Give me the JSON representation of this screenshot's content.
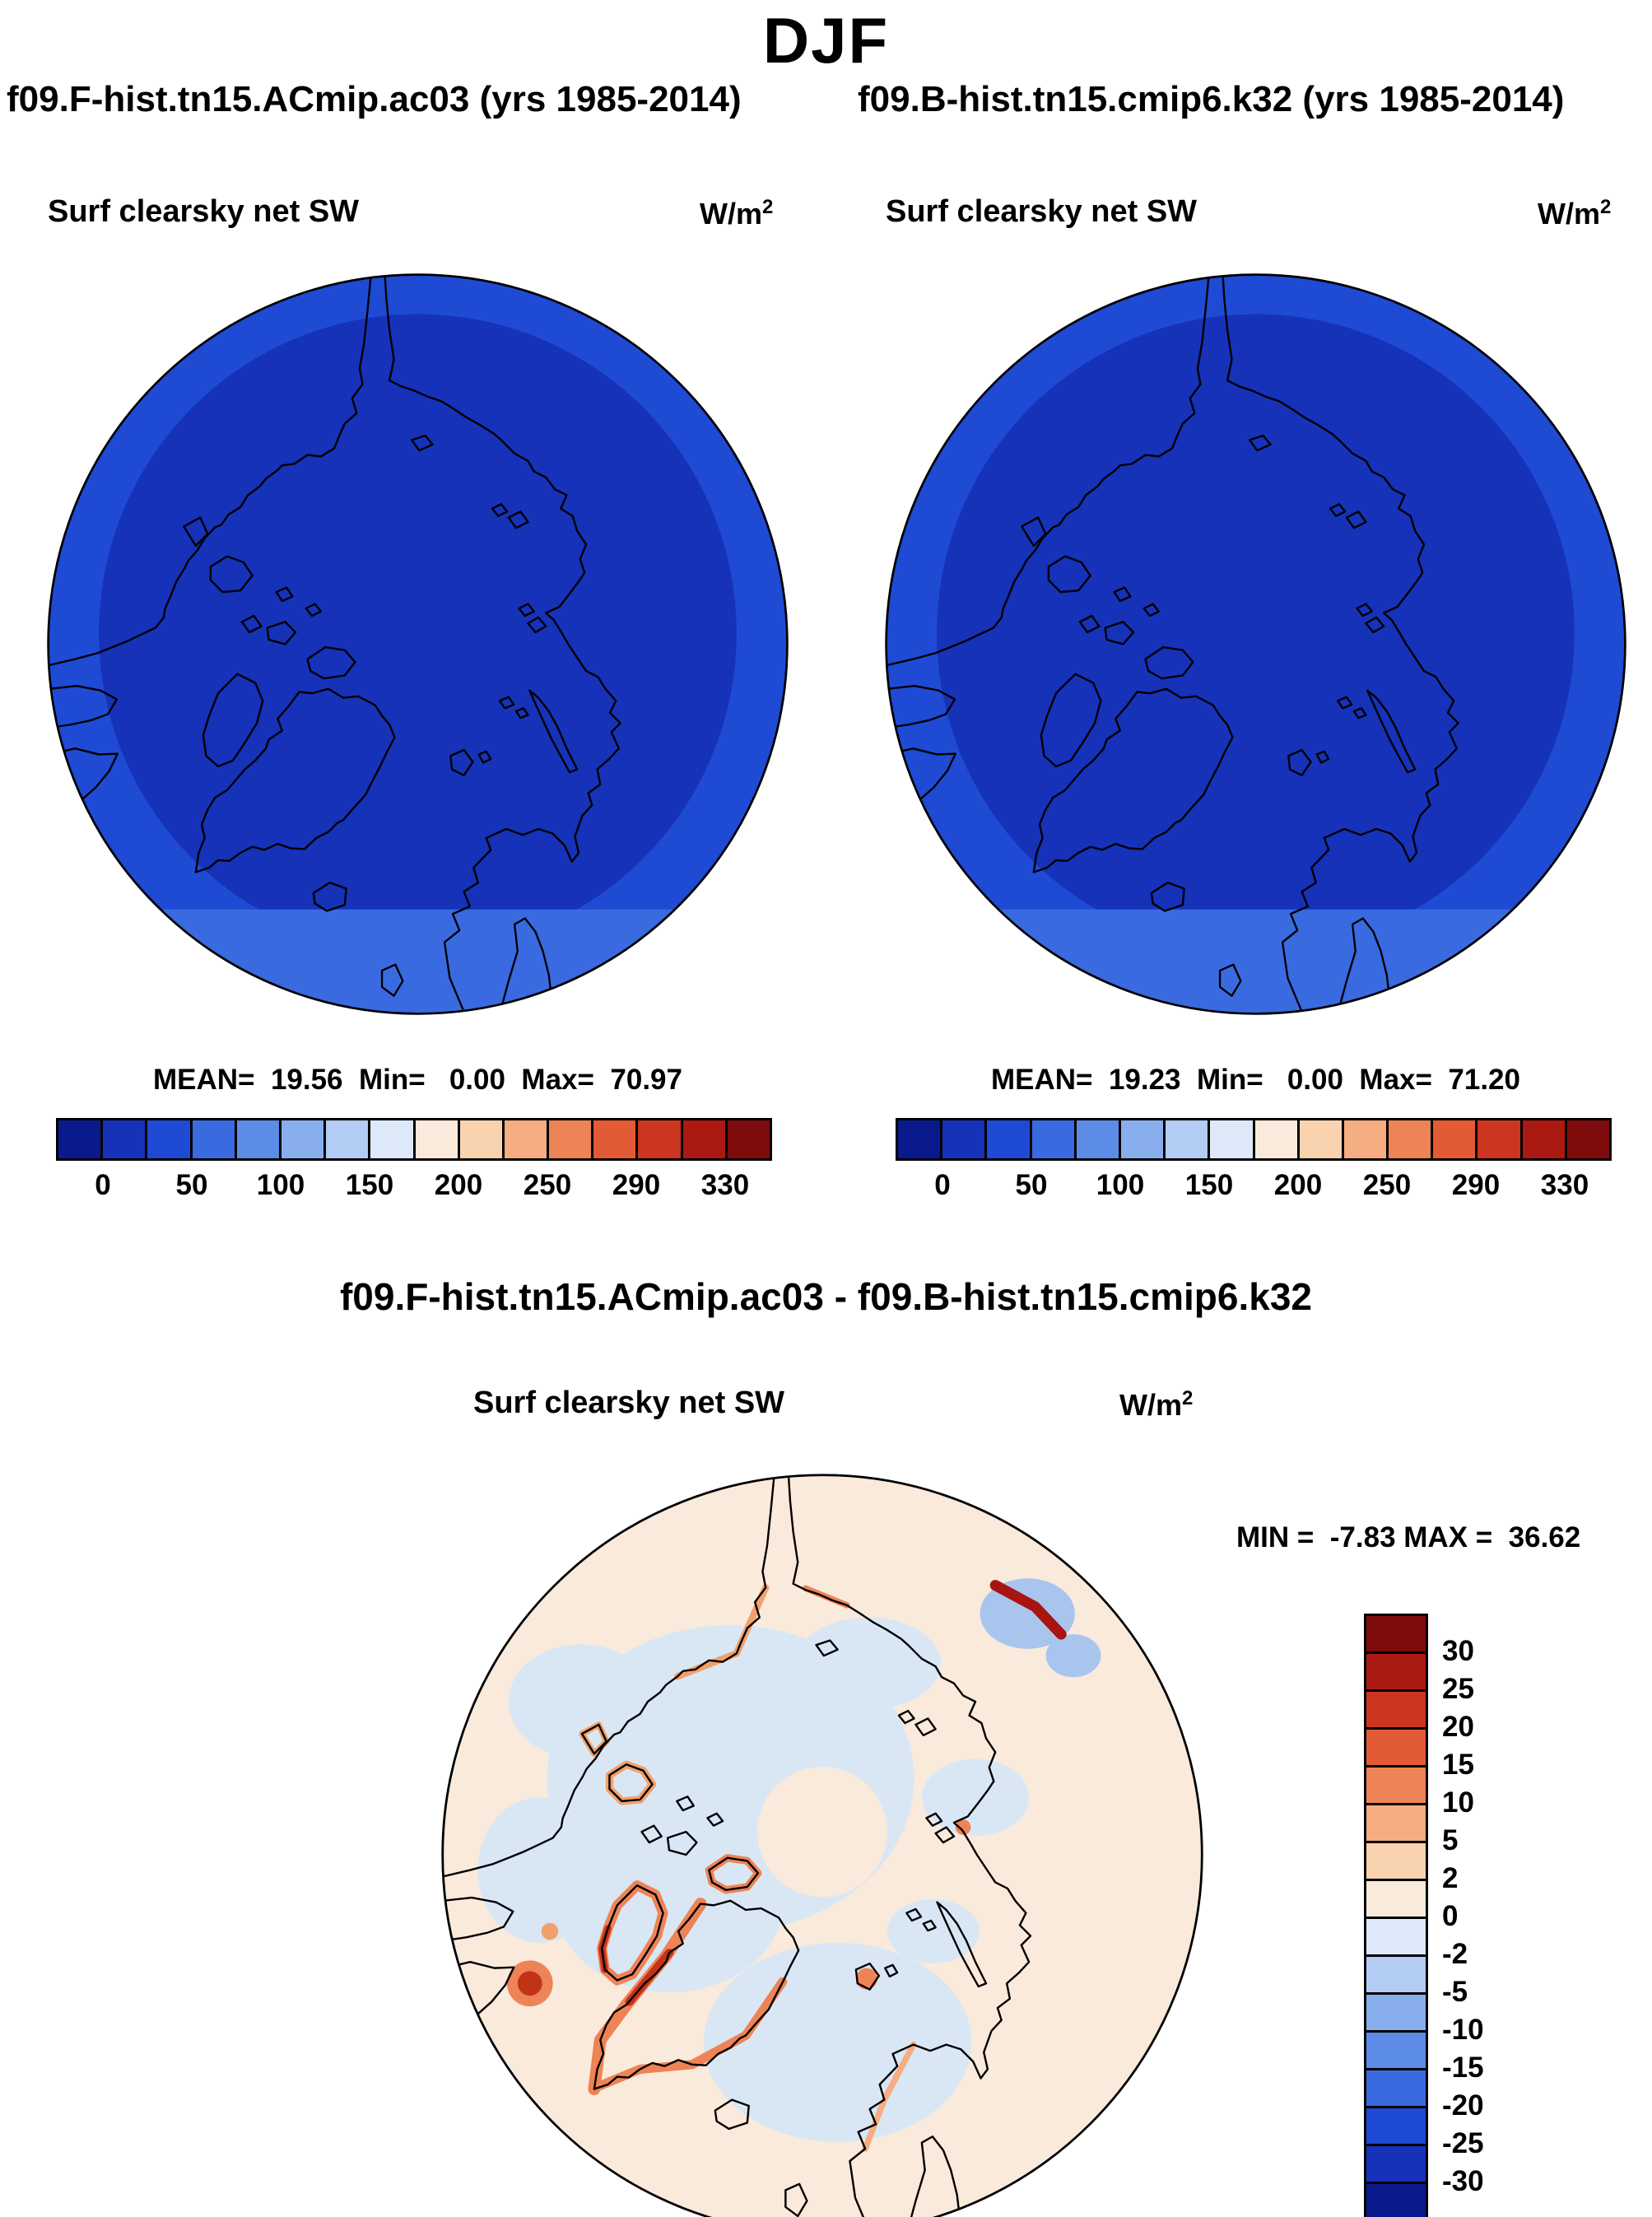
{
  "header": {
    "season": "DJF",
    "left_run": "f09.F-hist.tn15.ACmip.ac03 (yrs 1985-2014)",
    "right_run": "f09.B-hist.tn15.cmip6.k32 (yrs 1985-2014)"
  },
  "panels": [
    {
      "field_label": "Surf clearsky net SW",
      "units_base": "W/m",
      "units_exp": "2",
      "stats_line": "MEAN=  19.56  Min=   0.00  Max=  70.97"
    },
    {
      "field_label": "Surf clearsky net SW",
      "units_base": "W/m",
      "units_exp": "2",
      "stats_line": "MEAN=  19.23  Min=   0.00  Max=  71.20"
    }
  ],
  "diff": {
    "title": "f09.F-hist.tn15.ACmip.ac03 - f09.B-hist.tn15.cmip6.k32",
    "field_label": "Surf clearsky net SW",
    "units_base": "W/m",
    "units_exp": "2",
    "stats_line": "MIN =  -7.83 MAX =  36.62"
  },
  "chart_data": [
    {
      "type": "heatmap",
      "projection": "north-polar-stereographic",
      "season": "DJF",
      "run": "f09.F-hist.tn15.ACmip.ac03",
      "years": "1985-2014",
      "variable": "Surf clearsky net SW",
      "units": "W/m2",
      "mean": 19.56,
      "min": 0.0,
      "max": 70.97,
      "colorbar": {
        "orientation": "horizontal",
        "levels": [
          0,
          25,
          50,
          75,
          100,
          125,
          150,
          175,
          200,
          225,
          250,
          270,
          290,
          310,
          330
        ],
        "tick_values": [
          0,
          50,
          100,
          150,
          200,
          250,
          290,
          330
        ],
        "colors": [
          "#0a1a8c",
          "#1532b8",
          "#1f4ad4",
          "#3a6ae0",
          "#5d8ce8",
          "#88aeee",
          "#b3ccf4",
          "#dde8f8",
          "#faeadb",
          "#f9d3b0",
          "#f5ad81",
          "#ee8355",
          "#e25b35",
          "#cc3520",
          "#ab1a12",
          "#7f0c0c"
        ]
      },
      "map_fill": {
        "main": "#1532b8",
        "ring": "#1f4ad4",
        "south_band": "#3a6ae0"
      }
    },
    {
      "type": "heatmap",
      "projection": "north-polar-stereographic",
      "season": "DJF",
      "run": "f09.B-hist.tn15.cmip6.k32",
      "years": "1985-2014",
      "variable": "Surf clearsky net SW",
      "units": "W/m2",
      "mean": 19.23,
      "min": 0.0,
      "max": 71.2,
      "colorbar": {
        "orientation": "horizontal",
        "levels": [
          0,
          25,
          50,
          75,
          100,
          125,
          150,
          175,
          200,
          225,
          250,
          270,
          290,
          310,
          330
        ],
        "tick_values": [
          0,
          50,
          100,
          150,
          200,
          250,
          290,
          330
        ],
        "colors": [
          "#0a1a8c",
          "#1532b8",
          "#1f4ad4",
          "#3a6ae0",
          "#5d8ce8",
          "#88aeee",
          "#b3ccf4",
          "#dde8f8",
          "#faeadb",
          "#f9d3b0",
          "#f5ad81",
          "#ee8355",
          "#e25b35",
          "#cc3520",
          "#ab1a12",
          "#7f0c0c"
        ]
      },
      "map_fill": {
        "main": "#1532b8",
        "ring": "#1f4ad4",
        "south_band": "#3a6ae0"
      }
    },
    {
      "type": "heatmap",
      "projection": "north-polar-stereographic",
      "season": "DJF",
      "run": "f09.F-hist.tn15.ACmip.ac03 - f09.B-hist.tn15.cmip6.k32",
      "variable": "Surf clearsky net SW",
      "units": "W/m2",
      "min": -7.83,
      "max": 36.62,
      "colorbar": {
        "orientation": "vertical",
        "tick_values": [
          30,
          25,
          20,
          15,
          10,
          5,
          2,
          0,
          -2,
          -5,
          -10,
          -15,
          -20,
          -25,
          -30
        ],
        "colors": [
          "#7f0c0c",
          "#ab1a12",
          "#cc3520",
          "#e25b35",
          "#ee8355",
          "#f5ad81",
          "#f9d3b0",
          "#faeadb",
          "#dde8f8",
          "#b3ccf4",
          "#88aeee",
          "#5d8ce8",
          "#3a6ae0",
          "#1f4ad4",
          "#1532b8",
          "#0a1a8c"
        ]
      },
      "map_fill": {
        "base": "#faeadb",
        "neg": "#d9e7f5",
        "neg_strong": "#a9c5ee",
        "pos": "#ee8355",
        "pos_strong": "#c23318"
      }
    }
  ]
}
